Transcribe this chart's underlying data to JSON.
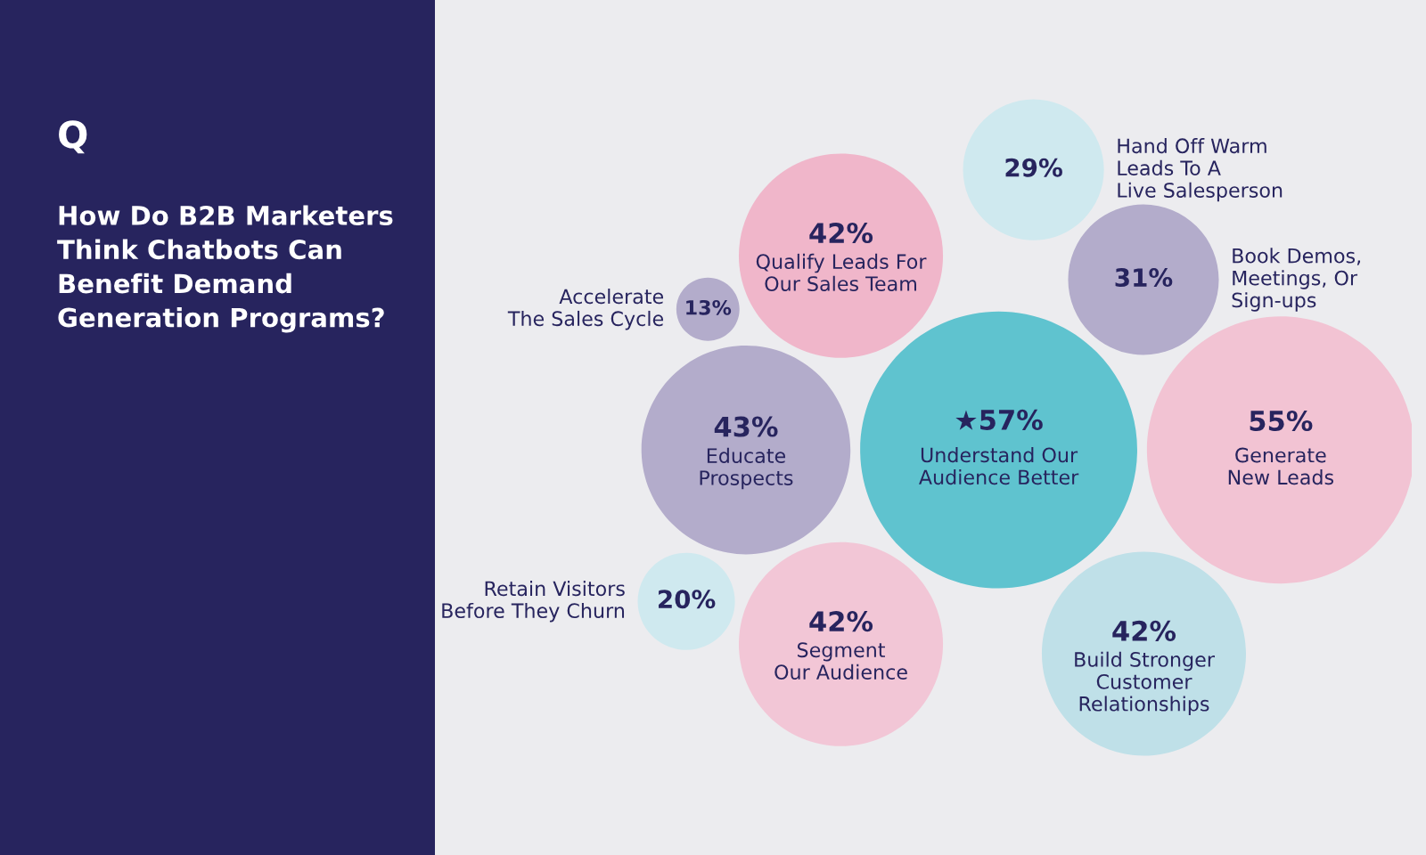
{
  "chart_data": {
    "type": "other",
    "subtitle": "Q",
    "title": "How Do B2B Marketers\nThink Chatbots Can\nBenefit Demand\nGeneration Programs?",
    "categories": [
      "Educate\nProspects",
      "Segment\nOur Audience",
      "Retain Visitors\nBefore They Churn",
      "Hand Off Warm\nLeads To A\nLive Salesperson",
      "Accelerate\nThe Sales Cycle",
      "Understand Our\nAudience Better",
      "Book Demos,\nMeetings, Or\nSign-ups",
      "Qualify Leads For\nOur Sales Team",
      "Generate\nNew Leads",
      "Build Stronger\nCustomer\nRelationships"
    ],
    "values": [
      43,
      42,
      20,
      29,
      13,
      57,
      31,
      42,
      55,
      42
    ],
    "value_labels": [
      "43%",
      "42%",
      "20%",
      "29%",
      "13%",
      "★57%",
      "31%",
      "42%",
      "55%",
      "42%"
    ],
    "colors": [
      "#b3accb",
      "#f2c6d6",
      "#cfe9ef",
      "#cfe9ef",
      "#b3accb",
      "#5fc3cf",
      "#b3accb",
      "#f0b6ca",
      "#f2c3d3",
      "#bfe0e8"
    ]
  }
}
